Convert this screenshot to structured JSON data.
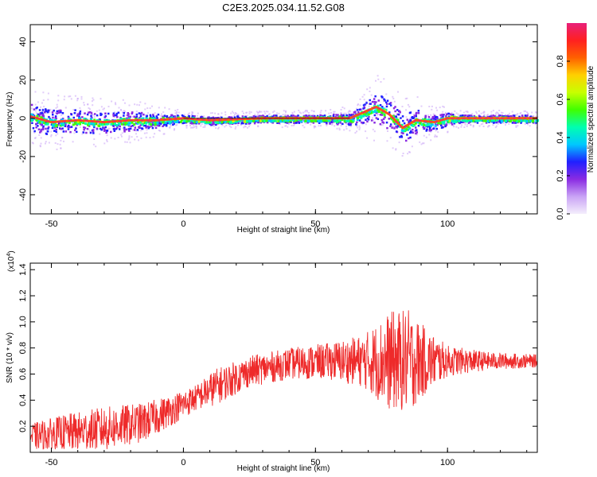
{
  "title": "C2E3.2025.034.11.52.G08",
  "chart_data": [
    {
      "type": "heatmap",
      "xlabel": "Height of straight line (km)",
      "ylabel": "Frequency (Hz)",
      "xlim": [
        -58,
        134
      ],
      "ylim": [
        -50,
        49
      ],
      "xticks": [
        -50,
        0,
        50,
        100
      ],
      "yticks": [
        -40,
        -20,
        0,
        20,
        40
      ],
      "colorbar": {
        "label": "Normalized spectral amplitude",
        "range": [
          0,
          1
        ],
        "ticks": [
          "0.0",
          "0.2",
          "0.4",
          "0.6",
          "0.8"
        ],
        "colors": [
          "#f4eefc",
          "#c9a3f5",
          "#8a2be2",
          "#2020ff",
          "#00c8ff",
          "#00ffb0",
          "#40ff00",
          "#c8ff00",
          "#ffd000",
          "#ff6000",
          "#ff2020",
          "#e8207a"
        ]
      },
      "ridge": [
        {
          "x": -58,
          "y": 1
        },
        {
          "x": -50,
          "y": -2
        },
        {
          "x": -40,
          "y": -1
        },
        {
          "x": -30,
          "y": -2
        },
        {
          "x": -20,
          "y": -1
        },
        {
          "x": -10,
          "y": -1
        },
        {
          "x": 0,
          "y": 0
        },
        {
          "x": 10,
          "y": -1
        },
        {
          "x": 30,
          "y": 0
        },
        {
          "x": 50,
          "y": 0
        },
        {
          "x": 63,
          "y": 0
        },
        {
          "x": 68,
          "y": 3
        },
        {
          "x": 73,
          "y": 6
        },
        {
          "x": 78,
          "y": 2
        },
        {
          "x": 83,
          "y": -5
        },
        {
          "x": 88,
          "y": -1
        },
        {
          "x": 95,
          "y": -2
        },
        {
          "x": 100,
          "y": 0
        },
        {
          "x": 115,
          "y": 0
        },
        {
          "x": 134,
          "y": 0
        }
      ],
      "spread": [
        {
          "x": -58,
          "w": 7
        },
        {
          "x": -40,
          "w": 6
        },
        {
          "x": -20,
          "w": 5
        },
        {
          "x": 0,
          "w": 2
        },
        {
          "x": 50,
          "w": 2
        },
        {
          "x": 63,
          "w": 3
        },
        {
          "x": 73,
          "w": 8
        },
        {
          "x": 85,
          "w": 7
        },
        {
          "x": 95,
          "w": 4
        },
        {
          "x": 105,
          "w": 2
        },
        {
          "x": 134,
          "w": 2
        }
      ]
    },
    {
      "type": "line",
      "xlabel": "Height of straight line (km)",
      "ylabel": "SNR (10 * v/v)",
      "scale_label": "(x10",
      "scale_exp": "4",
      "scale_close": ")",
      "xlim": [
        -58,
        134
      ],
      "ylim": [
        0,
        1.45
      ],
      "xticks": [
        -50,
        0,
        50,
        100
      ],
      "yticks": [
        0.2,
        0.4,
        0.6,
        0.8,
        1.0,
        1.2,
        1.4
      ],
      "color": "#ee2a2a",
      "envelope": [
        {
          "x": -58,
          "mean": 0.12,
          "amp": 0.1
        },
        {
          "x": -45,
          "mean": 0.15,
          "amp": 0.14
        },
        {
          "x": -30,
          "mean": 0.18,
          "amp": 0.17
        },
        {
          "x": -15,
          "mean": 0.23,
          "amp": 0.15
        },
        {
          "x": -5,
          "mean": 0.32,
          "amp": 0.12
        },
        {
          "x": 5,
          "mean": 0.42,
          "amp": 0.1
        },
        {
          "x": 12,
          "mean": 0.5,
          "amp": 0.14
        },
        {
          "x": 25,
          "mean": 0.62,
          "amp": 0.12
        },
        {
          "x": 40,
          "mean": 0.68,
          "amp": 0.12
        },
        {
          "x": 55,
          "mean": 0.7,
          "amp": 0.14
        },
        {
          "x": 68,
          "mean": 0.7,
          "amp": 0.2
        },
        {
          "x": 78,
          "mean": 0.7,
          "amp": 0.38
        },
        {
          "x": 85,
          "mean": 0.7,
          "amp": 0.4
        },
        {
          "x": 92,
          "mean": 0.7,
          "amp": 0.25
        },
        {
          "x": 100,
          "mean": 0.7,
          "amp": 0.12
        },
        {
          "x": 115,
          "mean": 0.7,
          "amp": 0.07
        },
        {
          "x": 134,
          "mean": 0.7,
          "amp": 0.05
        }
      ]
    }
  ]
}
